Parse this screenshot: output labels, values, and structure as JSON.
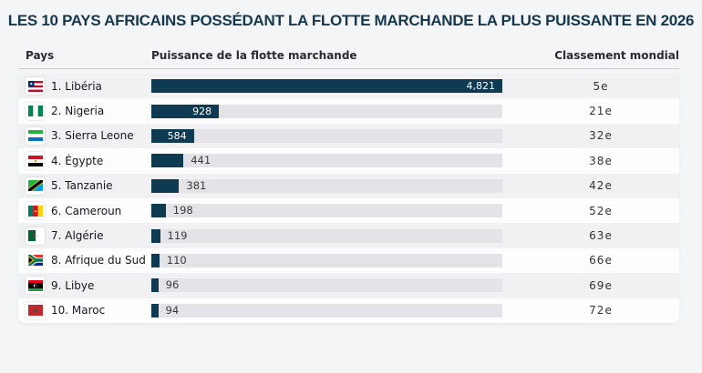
{
  "colors": {
    "background": "#f4f5f7",
    "title": "#16384f",
    "bar_fill": "#0e3a52",
    "bar_track": "#e4e4e8",
    "row_odd": "#f1f1f4",
    "row_even": "#fdfdfe",
    "value_inside_text": "#ffffff",
    "value_outside_text": "#3a3a3a",
    "header_text": "#2b2b33",
    "country_text": "#15151d",
    "rank_text": "#333333"
  },
  "chart_data": {
    "type": "bar",
    "orientation": "horizontal",
    "title": "LES 10 PAYS AFRICAINS POSSÉDANT LA FLOTTE MARCHANDE LA PLUS PUISSANTE EN 2026",
    "columns": {
      "country": "Pays",
      "power": "Puissance de la flotte marchande",
      "rank": "Classement mondial"
    },
    "xlim": [
      0,
      4821
    ],
    "rows": [
      {
        "position": 1,
        "country": "Libéria",
        "value": 4821,
        "value_label": "4,821",
        "world_rank": "5e",
        "flag": "liberia"
      },
      {
        "position": 2,
        "country": "Nigeria",
        "value": 928,
        "value_label": "928",
        "world_rank": "21e",
        "flag": "nigeria"
      },
      {
        "position": 3,
        "country": "Sierra Leone",
        "value": 584,
        "value_label": "584",
        "world_rank": "32e",
        "flag": "sierra-leone"
      },
      {
        "position": 4,
        "country": "Égypte",
        "value": 441,
        "value_label": "441",
        "world_rank": "38e",
        "flag": "egypt"
      },
      {
        "position": 5,
        "country": "Tanzanie",
        "value": 381,
        "value_label": "381",
        "world_rank": "42e",
        "flag": "tanzania"
      },
      {
        "position": 6,
        "country": "Cameroun",
        "value": 198,
        "value_label": "198",
        "world_rank": "52e",
        "flag": "cameroon"
      },
      {
        "position": 7,
        "country": "Algérie",
        "value": 119,
        "value_label": "119",
        "world_rank": "63e",
        "flag": "algeria"
      },
      {
        "position": 8,
        "country": "Afrique du Sud",
        "value": 110,
        "value_label": "110",
        "world_rank": "66e",
        "flag": "south-africa"
      },
      {
        "position": 9,
        "country": "Libye",
        "value": 96,
        "value_label": "96",
        "world_rank": "69e",
        "flag": "libya"
      },
      {
        "position": 10,
        "country": "Maroc",
        "value": 94,
        "value_label": "94",
        "world_rank": "72e",
        "flag": "morocco"
      }
    ]
  }
}
